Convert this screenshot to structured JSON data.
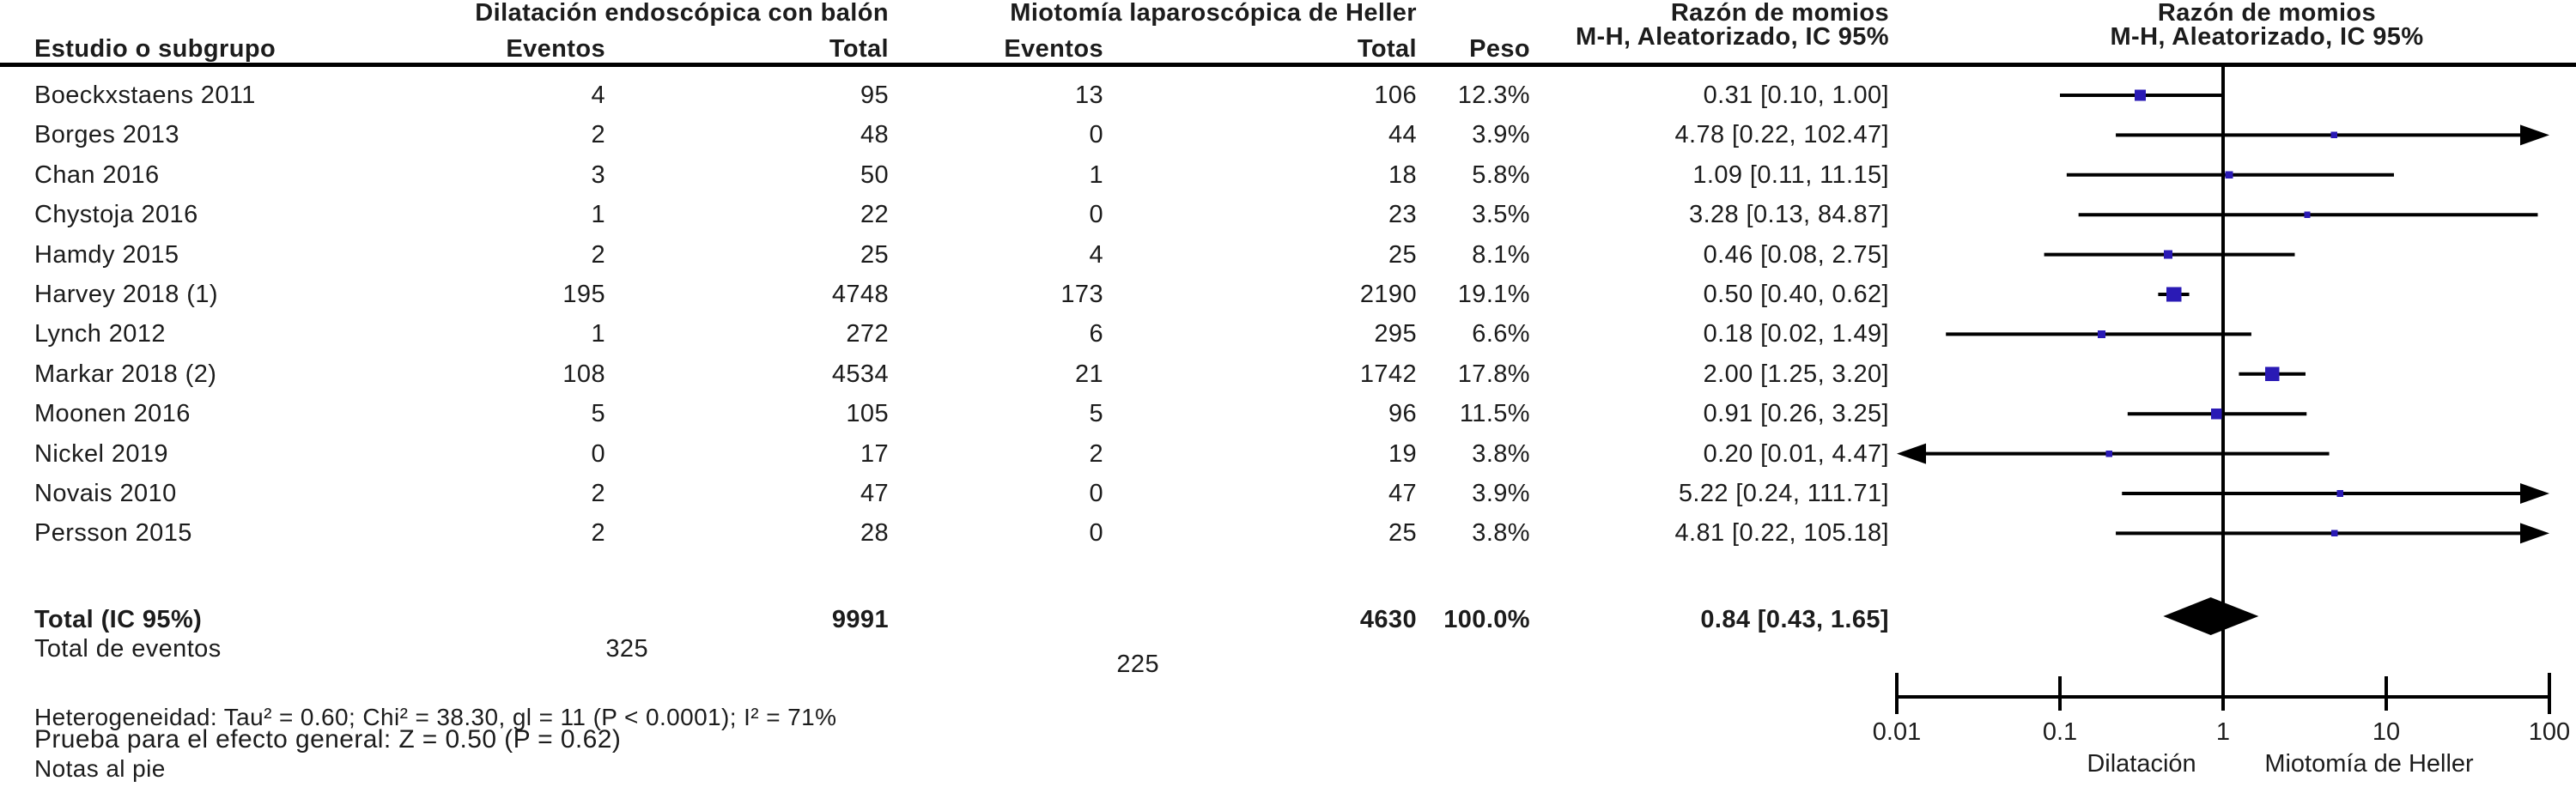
{
  "figure": {
    "group1_header": "Dilatación endoscópica con balón",
    "group2_header": "Miotomía laparoscópica de Heller",
    "study_col_header": "Estudio o subgrupo",
    "events_header_1": "Eventos",
    "total_header_1": "Total",
    "events_header_2": "Eventos",
    "total_header_2": "Total",
    "weight_header": "Peso",
    "or_header_line1": "Razón de momios",
    "or_header_line2": "M-H, Aleatorizado, IC 95%",
    "plot_header_line1": "Razón de momios",
    "plot_header_line2": "M-H, Aleatorizado, IC 95%",
    "total_label": "Total (IC 95%)",
    "total_g1_total": "9991",
    "total_g2_total": "4630",
    "total_weight": "100.0%",
    "total_or_text": "0.84 [0.43, 1.65]",
    "total_events_label": "Total de eventos",
    "total_g1_events": "325",
    "total_g2_events": "225",
    "heterogeneity_text": "Heterogeneidad: Tau² = 0.60; Chi² = 38.30, gl = 11 (P < 0.0001); I² = 71%",
    "overall_effect_text": "Prueba para el efecto general: Z = 0.50 (P = 0.62)",
    "footnote_text": "Notas al pie",
    "marker_color": "#2a1ab5",
    "line_color": "#000000"
  },
  "chart_data": {
    "type": "forest",
    "x_scale": "log10",
    "axis_range": [
      0.01,
      100
    ],
    "axis_ticks": [
      "0.01",
      "0.1",
      "1",
      "10",
      "100"
    ],
    "axis_tick_values": [
      0.01,
      0.1,
      1,
      10,
      100
    ],
    "axis_group_label_left": "Dilatación",
    "axis_group_label_right": "Miotomía de Heller",
    "effect_measure": "Razón de momios, M-H, Aleatorizado, IC 95%",
    "studies": [
      {
        "name": "Boeckxstaens 2011",
        "e1": "4",
        "t1": "95",
        "e2": "13",
        "t2": "106",
        "weight": "12.3%",
        "weight_pct": 12.3,
        "or": 0.31,
        "lo": 0.1,
        "hi": 1.0,
        "or_text": "0.31 [0.10, 1.00]"
      },
      {
        "name": "Borges 2013",
        "e1": "2",
        "t1": "48",
        "e2": "0",
        "t2": "44",
        "weight": "3.9%",
        "weight_pct": 3.9,
        "or": 4.78,
        "lo": 0.22,
        "hi": 102.47,
        "or_text": "4.78 [0.22, 102.47]"
      },
      {
        "name": "Chan 2016",
        "e1": "3",
        "t1": "50",
        "e2": "1",
        "t2": "18",
        "weight": "5.8%",
        "weight_pct": 5.8,
        "or": 1.09,
        "lo": 0.11,
        "hi": 11.15,
        "or_text": "1.09 [0.11, 11.15]"
      },
      {
        "name": "Chystoja 2016",
        "e1": "1",
        "t1": "22",
        "e2": "0",
        "t2": "23",
        "weight": "3.5%",
        "weight_pct": 3.5,
        "or": 3.28,
        "lo": 0.13,
        "hi": 84.87,
        "or_text": "3.28 [0.13, 84.87]"
      },
      {
        "name": "Hamdy 2015",
        "e1": "2",
        "t1": "25",
        "e2": "4",
        "t2": "25",
        "weight": "8.1%",
        "weight_pct": 8.1,
        "or": 0.46,
        "lo": 0.08,
        "hi": 2.75,
        "or_text": "0.46 [0.08, 2.75]"
      },
      {
        "name": "Harvey 2018 (1)",
        "e1": "195",
        "t1": "4748",
        "e2": "173",
        "t2": "2190",
        "weight": "19.1%",
        "weight_pct": 19.1,
        "or": 0.5,
        "lo": 0.4,
        "hi": 0.62,
        "or_text": "0.50 [0.40, 0.62]"
      },
      {
        "name": "Lynch 2012",
        "e1": "1",
        "t1": "272",
        "e2": "6",
        "t2": "295",
        "weight": "6.6%",
        "weight_pct": 6.6,
        "or": 0.18,
        "lo": 0.02,
        "hi": 1.49,
        "or_text": "0.18 [0.02, 1.49]"
      },
      {
        "name": "Markar 2018 (2)",
        "e1": "108",
        "t1": "4534",
        "e2": "21",
        "t2": "1742",
        "weight": "17.8%",
        "weight_pct": 17.8,
        "or": 2.0,
        "lo": 1.25,
        "hi": 3.2,
        "or_text": "2.00 [1.25, 3.20]"
      },
      {
        "name": "Moonen 2016",
        "e1": "5",
        "t1": "105",
        "e2": "5",
        "t2": "96",
        "weight": "11.5%",
        "weight_pct": 11.5,
        "or": 0.91,
        "lo": 0.26,
        "hi": 3.25,
        "or_text": "0.91 [0.26, 3.25]"
      },
      {
        "name": "Nickel 2019",
        "e1": "0",
        "t1": "17",
        "e2": "2",
        "t2": "19",
        "weight": "3.8%",
        "weight_pct": 3.8,
        "or": 0.2,
        "lo": 0.01,
        "hi": 4.47,
        "or_text": "0.20 [0.01, 4.47]"
      },
      {
        "name": "Novais 2010",
        "e1": "2",
        "t1": "47",
        "e2": "0",
        "t2": "47",
        "weight": "3.9%",
        "weight_pct": 3.9,
        "or": 5.22,
        "lo": 0.24,
        "hi": 111.71,
        "or_text": "5.22 [0.24, 111.71]"
      },
      {
        "name": "Persson 2015",
        "e1": "2",
        "t1": "28",
        "e2": "0",
        "t2": "25",
        "weight": "3.8%",
        "weight_pct": 3.8,
        "or": 4.81,
        "lo": 0.22,
        "hi": 105.18,
        "or_text": "4.81 [0.22, 105.18]"
      }
    ],
    "total": {
      "or": 0.84,
      "lo": 0.43,
      "hi": 1.65,
      "or_text": "0.84 [0.43, 1.65]"
    },
    "heterogeneity": {
      "tau2": 0.6,
      "chi2": 38.3,
      "df": 11,
      "p": "< 0.0001",
      "i2": "71%"
    },
    "overall_effect": {
      "z": 0.5,
      "p": 0.62
    }
  }
}
